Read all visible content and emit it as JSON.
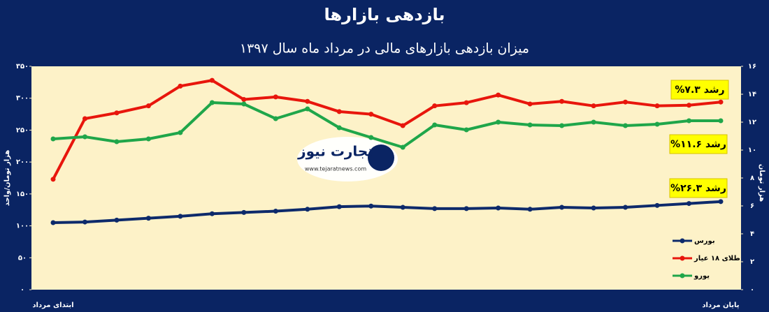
{
  "chart_data": {
    "type": "line",
    "title": "بازدهی بازارها",
    "subtitle": "میزان بازدهی بازارهای مالی در مرداد ماه سال ۱۳۹۷",
    "ylabel": "هزار تومان/واحد",
    "y2label": "هزار تومان",
    "categories": [
      "ابتدای مرداد",
      null,
      null,
      null,
      null,
      null,
      null,
      null,
      null,
      null,
      null,
      null,
      null,
      null,
      null,
      null,
      null,
      null,
      null,
      null,
      null,
      "پایان مرداد"
    ],
    "series": [
      {
        "name": "بورس",
        "color": "#0d2a6b",
        "values": [
          105,
          106,
          109,
          112,
          115,
          119,
          121,
          123,
          126,
          130,
          131,
          129,
          127,
          127,
          128,
          126,
          129,
          128,
          129,
          132,
          135,
          138
        ]
      },
      {
        "name": "طلای ۱۸ عیار",
        "color": "#e8160c",
        "values": [
          173,
          268,
          277,
          288,
          319,
          328,
          298,
          302,
          295,
          279,
          275,
          257,
          288,
          293,
          305,
          291,
          295,
          288,
          294,
          288,
          289,
          294
        ]
      },
      {
        "name": "یورو",
        "color": "#1fa64a",
        "axis": "y2",
        "values": [
          10.8,
          10.95,
          10.6,
          10.8,
          11.25,
          13.4,
          13.3,
          12.25,
          12.95,
          11.6,
          10.9,
          10.2,
          11.8,
          11.45,
          12,
          11.8,
          11.75,
          12,
          11.75,
          11.85,
          12.1,
          12.1
        ]
      }
    ],
    "ylim": [
      0,
      350
    ],
    "yticks": [
      {
        "value": 0,
        "label": "۰"
      },
      {
        "value": 50,
        "label": "۵۰"
      },
      {
        "value": 100,
        "label": "۱۰۰"
      },
      {
        "value": 150,
        "label": "۱۵۰"
      },
      {
        "value": 200,
        "label": "۲۰۰"
      },
      {
        "value": 250,
        "label": "۲۵۰"
      },
      {
        "value": 300,
        "label": "۳۰۰"
      },
      {
        "value": 350,
        "label": "۳۵۰"
      }
    ],
    "y2lim": [
      0,
      16
    ],
    "y2ticks": [
      {
        "value": 0,
        "label": "۰"
      },
      {
        "value": 2,
        "label": "۲"
      },
      {
        "value": 4,
        "label": "۴"
      },
      {
        "value": 6,
        "label": "۶"
      },
      {
        "value": 8,
        "label": "۸"
      },
      {
        "value": 10,
        "label": "۱۰"
      },
      {
        "value": 12,
        "label": "۱۲"
      },
      {
        "value": 14,
        "label": "۱۴"
      },
      {
        "value": 16,
        "label": "۱۶"
      }
    ],
    "legend": "lower right",
    "annotations": [
      "رشد ۷.۳%",
      "رشد ۱۱.۶%",
      "رشد ۲۶.۳%"
    ],
    "logo": {
      "name": "تجارت نیوز",
      "url": "www.tejaratnews.com"
    }
  }
}
